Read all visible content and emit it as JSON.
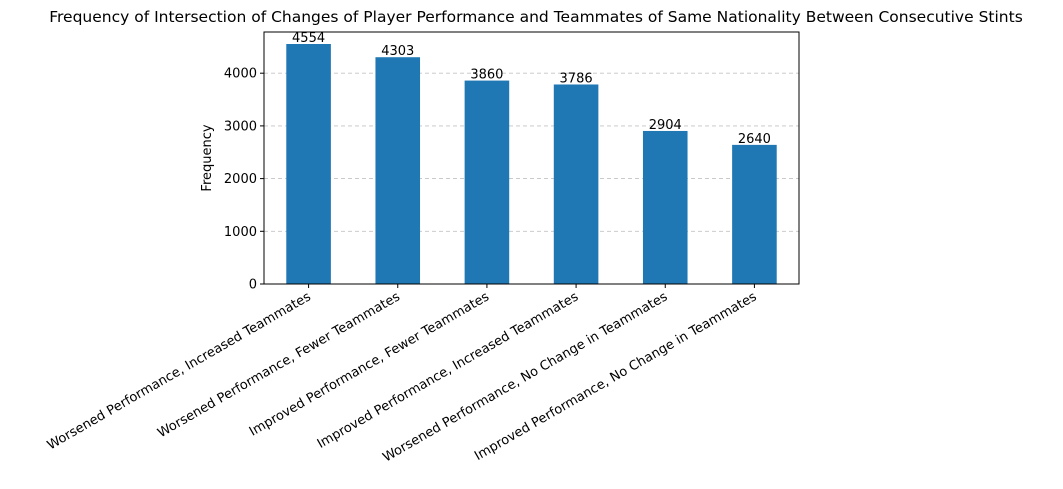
{
  "chart_data": {
    "type": "bar",
    "title": "Frequency of Intersection of Changes of Player Performance and Teammates of Same Nationality Between Consecutive Stints",
    "xlabel": "",
    "ylabel": "Frequency",
    "categories": [
      "Worsened Performance, Increased Teammates",
      "Worsened Performance, Fewer Teammates",
      "Improved Performance, Fewer Teammates",
      "Improved Performance, Increased Teammates",
      "Worsened Performance, No Change in Teammates",
      "Improved Performance, No Change in Teammates"
    ],
    "values": [
      4554,
      4303,
      3860,
      3786,
      2904,
      2640
    ],
    "data_labels": [
      "4554",
      "4303",
      "3860",
      "3786",
      "2904",
      "2640"
    ],
    "ylim": [
      0,
      4781.7
    ],
    "yticks": [
      0,
      1000,
      2000,
      3000,
      4000
    ],
    "ytick_labels": [
      "0",
      "1000",
      "2000",
      "3000",
      "4000"
    ],
    "grid": "y-axis dashed",
    "legend": "none",
    "bar_color": "#1f77b4"
  }
}
